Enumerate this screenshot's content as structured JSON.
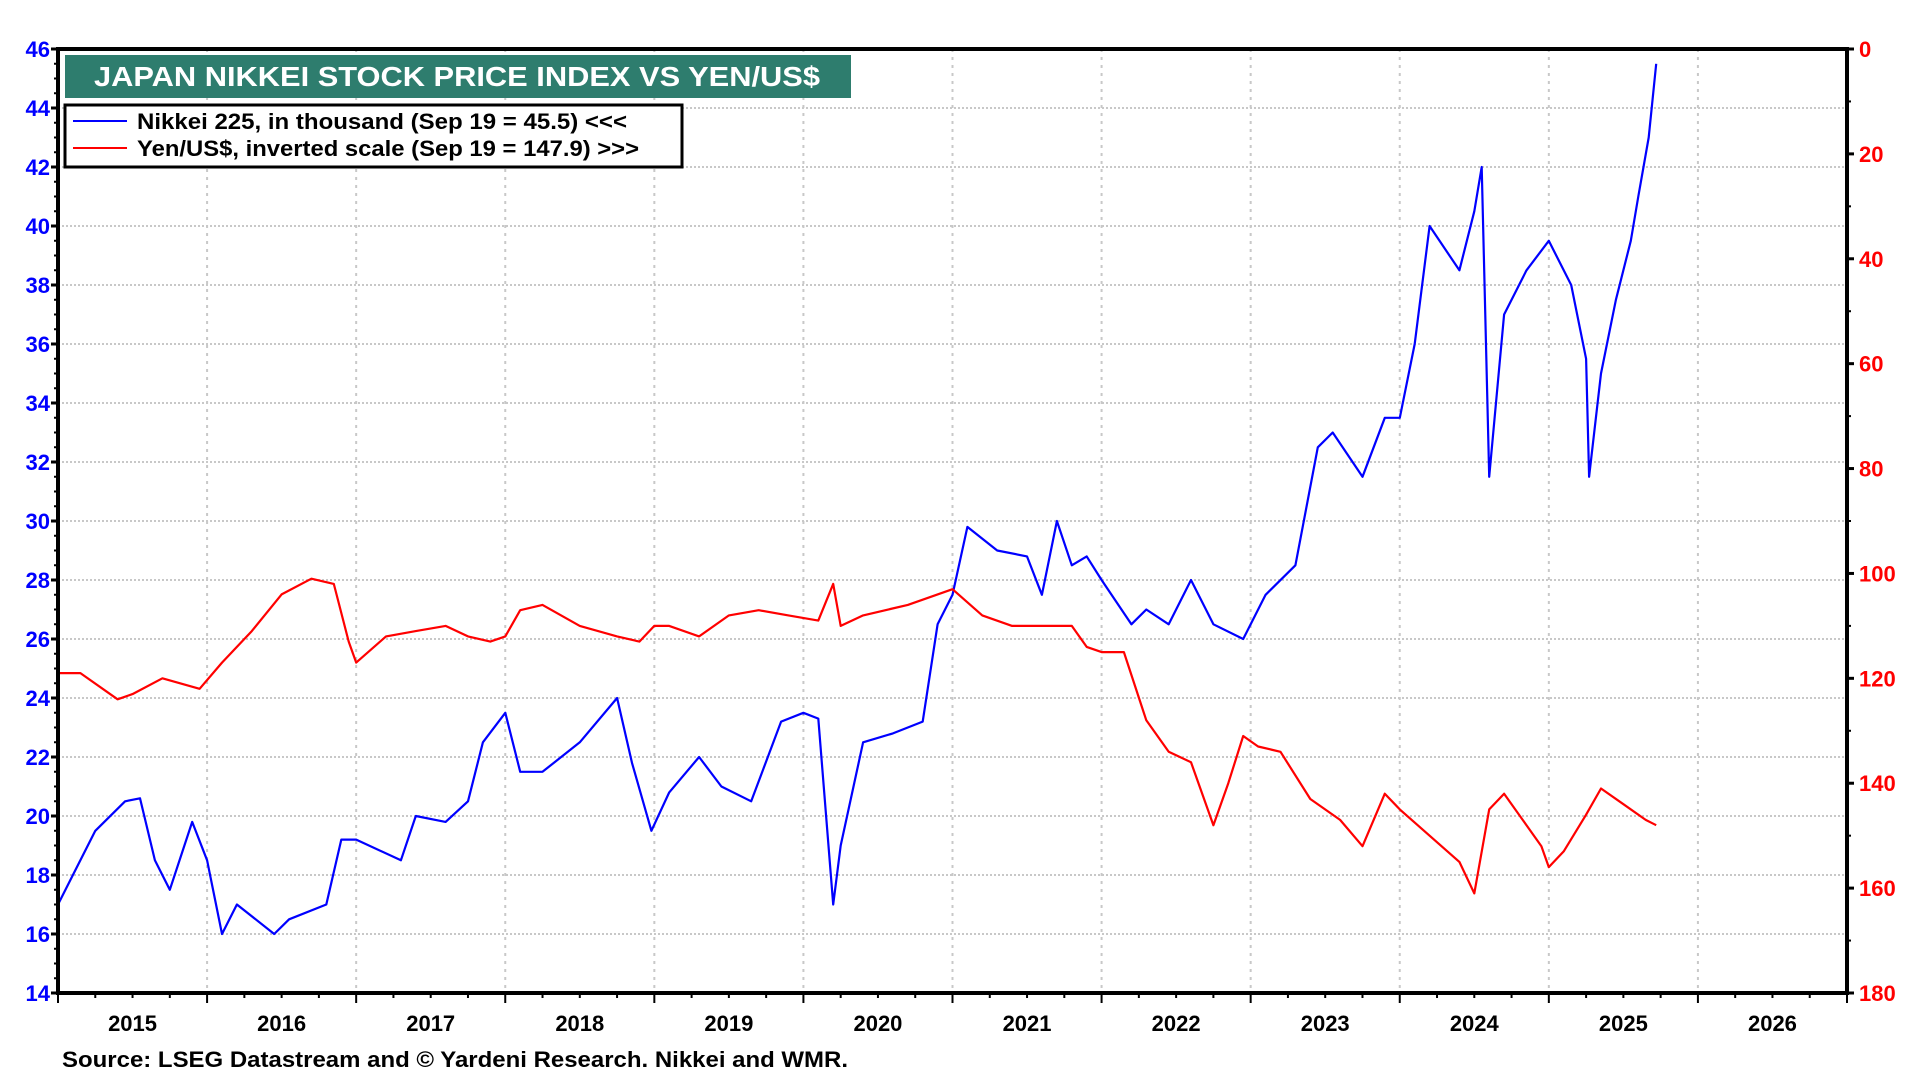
{
  "chart_data": {
    "type": "line",
    "title": "JAPAN NIKKEI STOCK PRICE INDEX VS YEN/US$",
    "source": "Source: LSEG Datastream and © Yardeni Research. Nikkei and WMR.",
    "x_range": [
      2015,
      2027
    ],
    "x_tick_labels": [
      "2015",
      "2016",
      "2017",
      "2018",
      "2019",
      "2020",
      "2021",
      "2022",
      "2023",
      "2024",
      "2025",
      "2026"
    ],
    "left_axis": {
      "range": [
        14,
        46
      ],
      "ticks": [
        14,
        16,
        18,
        20,
        22,
        24,
        26,
        28,
        30,
        32,
        34,
        36,
        38,
        40,
        42,
        44,
        46
      ],
      "color": "#0000ff"
    },
    "right_axis": {
      "range": [
        0,
        180
      ],
      "inverted": true,
      "ticks": [
        0,
        20,
        40,
        60,
        80,
        100,
        120,
        140,
        160,
        180
      ],
      "color": "#ff0000"
    },
    "grid": true,
    "legend_placement": "top-left",
    "title_bg": "#2e7d6e",
    "series": [
      {
        "name": "Nikkei 225, in thousand (Sep 19 = 45.5) <<<",
        "axis": "left",
        "color": "#0000ff",
        "x": [
          2015.0,
          2015.1,
          2015.25,
          2015.45,
          2015.55,
          2015.65,
          2015.75,
          2015.9,
          2016.0,
          2016.1,
          2016.2,
          2016.45,
          2016.55,
          2016.8,
          2016.9,
          2017.0,
          2017.3,
          2017.4,
          2017.6,
          2017.75,
          2017.85,
          2018.0,
          2018.1,
          2018.25,
          2018.5,
          2018.75,
          2018.85,
          2018.98,
          2019.1,
          2019.3,
          2019.45,
          2019.65,
          2019.85,
          2020.0,
          2020.1,
          2020.2,
          2020.25,
          2020.4,
          2020.6,
          2020.8,
          2020.9,
          2021.0,
          2021.1,
          2021.3,
          2021.5,
          2021.6,
          2021.7,
          2021.8,
          2021.9,
          2022.0,
          2022.2,
          2022.3,
          2022.45,
          2022.6,
          2022.75,
          2022.95,
          2023.1,
          2023.3,
          2023.45,
          2023.55,
          2023.75,
          2023.9,
          2024.0,
          2024.1,
          2024.2,
          2024.4,
          2024.5,
          2024.55,
          2024.6,
          2024.7,
          2024.85,
          2025.0,
          2025.15,
          2025.25,
          2025.27,
          2025.35,
          2025.45,
          2025.55,
          2025.6,
          2025.67,
          2025.72
        ],
        "y": [
          17.0,
          18.0,
          19.5,
          20.5,
          20.6,
          18.5,
          17.5,
          19.8,
          18.5,
          16.0,
          17.0,
          16.0,
          16.5,
          17.0,
          19.2,
          19.2,
          18.5,
          20.0,
          19.8,
          20.5,
          22.5,
          23.5,
          21.5,
          21.5,
          22.5,
          24.0,
          21.8,
          19.5,
          20.8,
          22.0,
          21.0,
          20.5,
          23.2,
          23.5,
          23.3,
          17.0,
          19.0,
          22.5,
          22.8,
          23.2,
          26.5,
          27.5,
          29.8,
          29.0,
          28.8,
          27.5,
          30.0,
          28.5,
          28.8,
          28.0,
          26.5,
          27.0,
          26.5,
          28.0,
          26.5,
          26.0,
          27.5,
          28.5,
          32.5,
          33.0,
          31.5,
          33.5,
          33.5,
          36.0,
          40.0,
          38.5,
          40.5,
          42.0,
          31.5,
          37.0,
          38.5,
          39.5,
          38.0,
          35.5,
          31.5,
          35.0,
          37.5,
          39.5,
          41.0,
          43.0,
          45.5
        ]
      },
      {
        "name": "Yen/US$, inverted scale (Sep 19 = 147.9) >>>",
        "axis": "right",
        "color": "#ff0000",
        "x": [
          2015.0,
          2015.15,
          2015.4,
          2015.5,
          2015.7,
          2015.95,
          2016.1,
          2016.3,
          2016.5,
          2016.7,
          2016.85,
          2016.95,
          2017.0,
          2017.2,
          2017.4,
          2017.6,
          2017.75,
          2017.9,
          2018.0,
          2018.1,
          2018.25,
          2018.5,
          2018.75,
          2018.9,
          2019.0,
          2019.1,
          2019.3,
          2019.5,
          2019.7,
          2019.9,
          2020.1,
          2020.2,
          2020.25,
          2020.4,
          2020.7,
          2020.9,
          2021.0,
          2021.2,
          2021.4,
          2021.6,
          2021.8,
          2021.9,
          2022.0,
          2022.15,
          2022.3,
          2022.45,
          2022.6,
          2022.75,
          2022.85,
          2022.95,
          2023.05,
          2023.2,
          2023.4,
          2023.6,
          2023.75,
          2023.9,
          2024.0,
          2024.2,
          2024.4,
          2024.5,
          2024.6,
          2024.7,
          2024.85,
          2024.95,
          2025.0,
          2025.1,
          2025.25,
          2025.35,
          2025.5,
          2025.65,
          2025.72
        ],
        "y": [
          119,
          119,
          124,
          123,
          120,
          122,
          117,
          111,
          104,
          101,
          102,
          113,
          117,
          112,
          111,
          110,
          112,
          113,
          112,
          107,
          106,
          110,
          112,
          113,
          110,
          110,
          112,
          108,
          107,
          108,
          109,
          102,
          110,
          108,
          106,
          104,
          103,
          108,
          110,
          110,
          110,
          114,
          115,
          115,
          128,
          134,
          136,
          148,
          140,
          131,
          133,
          134,
          143,
          147,
          152,
          142,
          145,
          150,
          155,
          161,
          145,
          142,
          148,
          152,
          156,
          153,
          146,
          141,
          144,
          147,
          148
        ]
      }
    ]
  }
}
